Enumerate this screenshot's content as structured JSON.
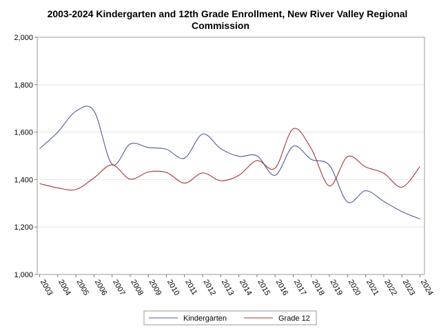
{
  "chart_data": {
    "type": "line",
    "title_lines": [
      "2003-2024 Kindergarten and 12th Grade Enrollment, New River Valley Regional",
      "Commission"
    ],
    "x": [
      "2003",
      "2004",
      "2005",
      "2006",
      "2007",
      "2008",
      "2009",
      "2010",
      "2011",
      "2012",
      "2013",
      "2014",
      "2015",
      "2016",
      "2017",
      "2018",
      "2019",
      "2020",
      "2021",
      "2022",
      "2023",
      "2024"
    ],
    "ylim": [
      1000,
      2000
    ],
    "yticks": [
      1000,
      1200,
      1400,
      1600,
      1800,
      2000
    ],
    "ytick_labels": [
      "1,000",
      "1,200",
      "1,400",
      "1,600",
      "1,800",
      "2,000"
    ],
    "grid": true,
    "legend_position": "bottom",
    "series": [
      {
        "name": "Kindergarten",
        "color": "#4a5a9a",
        "values": [
          1530,
          1600,
          1688,
          1690,
          1465,
          1550,
          1535,
          1528,
          1490,
          1592,
          1530,
          1498,
          1500,
          1418,
          1540,
          1485,
          1460,
          1305,
          1353,
          1308,
          1265,
          1234
        ]
      },
      {
        "name": "Grade 12",
        "color": "#a83232",
        "values": [
          1383,
          1365,
          1358,
          1407,
          1462,
          1402,
          1432,
          1430,
          1385,
          1428,
          1395,
          1418,
          1480,
          1448,
          1614,
          1530,
          1373,
          1497,
          1453,
          1427,
          1368,
          1455
        ]
      }
    ]
  }
}
